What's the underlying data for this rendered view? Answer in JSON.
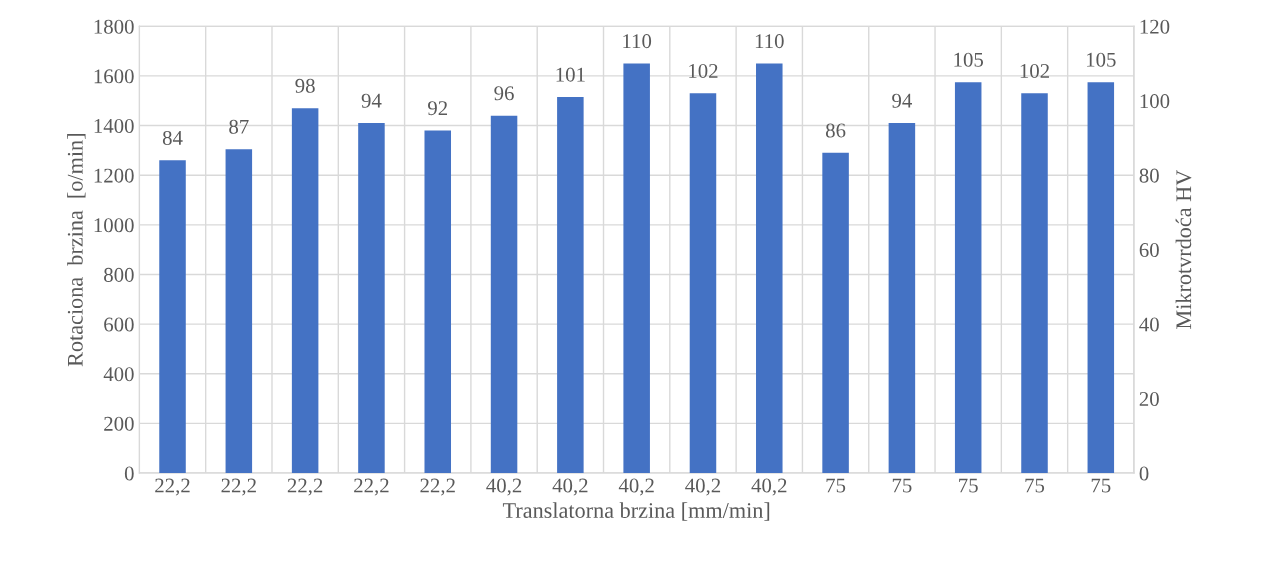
{
  "chart_data": {
    "type": "bar",
    "xlabel": "Translatorna brzina [mm/min]",
    "ylabel": "Rotaciona  brzina  [o/min]",
    "y2label": "Mikrotvrdoća HV",
    "categories": [
      "22,2",
      "22,2",
      "22,2",
      "22,2",
      "22,2",
      "40,2",
      "40,2",
      "40,2",
      "40,2",
      "40,2",
      "75",
      "75",
      "75",
      "75",
      "75"
    ],
    "series": [
      {
        "color": "#4472c4",
        "axis": "y2",
        "values": [
          84,
          87,
          98,
          94,
          92,
          96,
          101,
          110,
          102,
          110,
          86,
          94,
          105,
          102,
          105
        ]
      }
    ],
    "ylim": [
      0,
      1800
    ],
    "yticks": [
      0,
      200,
      400,
      600,
      800,
      1000,
      1200,
      1400,
      1600,
      1800
    ],
    "y2lim": [
      0,
      120
    ],
    "y2ticks": [
      0,
      20,
      40,
      60,
      80,
      100,
      120
    ],
    "grid": true,
    "data_labels": true
  }
}
